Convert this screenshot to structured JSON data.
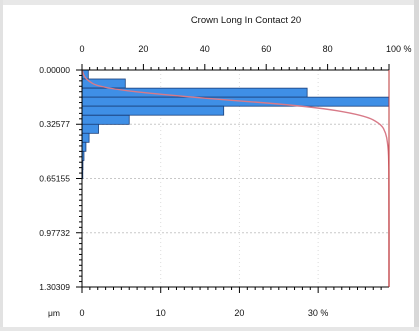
{
  "chart_data": {
    "type": "bar",
    "orientation": "horizontal",
    "title": "Crown Long In Contact 20",
    "ylabel": "μm",
    "yticks": [
      "0.00000",
      "0.32577",
      "0.65155",
      "0.97732",
      "1.30309"
    ],
    "ylim": [
      0,
      1.30309
    ],
    "top_axis": {
      "ticks": [
        "0",
        "20",
        "40",
        "60",
        "80",
        "100 %"
      ],
      "range": [
        0,
        100
      ]
    },
    "bottom_axis": {
      "ticks": [
        "0",
        "10",
        "20",
        "30 %"
      ],
      "range": [
        0,
        39
      ]
    },
    "grid": true,
    "bin_width": 0.0543,
    "bins": [
      {
        "depth": 0.0,
        "percent": 0.8
      },
      {
        "depth": 0.054,
        "percent": 5.5
      },
      {
        "depth": 0.109,
        "percent": 28.6
      },
      {
        "depth": 0.163,
        "percent": 39.0
      },
      {
        "depth": 0.217,
        "percent": 18.0
      },
      {
        "depth": 0.272,
        "percent": 6.0
      },
      {
        "depth": 0.326,
        "percent": 2.1
      },
      {
        "depth": 0.38,
        "percent": 0.9
      },
      {
        "depth": 0.434,
        "percent": 0.5
      },
      {
        "depth": 0.489,
        "percent": 0.25
      },
      {
        "depth": 0.543,
        "percent": 0.12
      },
      {
        "depth": 0.597,
        "percent": 0.06
      }
    ],
    "cumulative_curve": {
      "axis": "top",
      "points": [
        [
          0.0,
          0
        ],
        [
          0.054,
          1
        ],
        [
          0.109,
          6
        ],
        [
          0.163,
          35
        ],
        [
          0.217,
          74
        ],
        [
          0.272,
          92
        ],
        [
          0.326,
          97.5
        ],
        [
          0.38,
          99
        ],
        [
          0.434,
          99.5
        ],
        [
          0.489,
          99.8
        ],
        [
          0.543,
          99.9
        ],
        [
          0.65,
          100
        ],
        [
          1.30309,
          100
        ]
      ]
    },
    "colors": {
      "bar_fill": "#3f8fe6",
      "bar_stroke": "#1a3f7a",
      "curve": "#d87a88",
      "curve_dark": "#6e6fa8",
      "grid": "#c8c8c8"
    }
  }
}
